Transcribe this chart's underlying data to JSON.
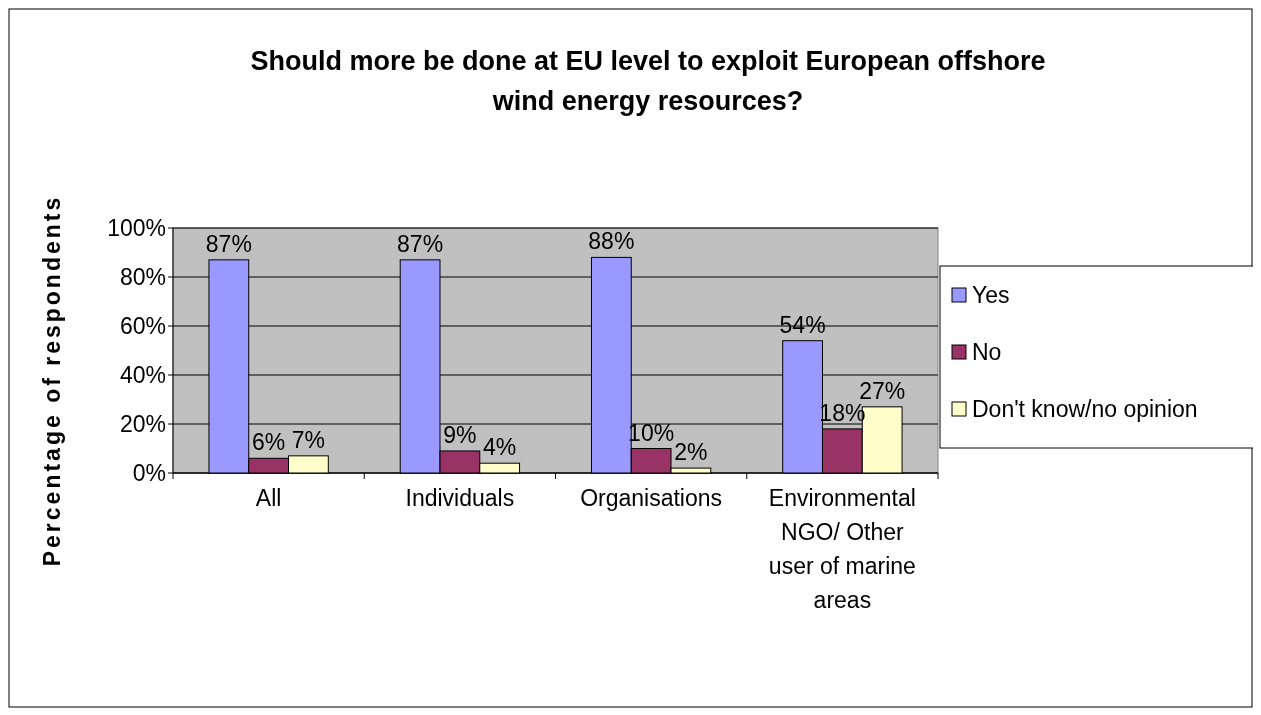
{
  "chart_data": {
    "type": "bar",
    "title": "Should more be done at EU level to exploit European offshore wind energy resources?",
    "ylabel": "Percentage of respondents",
    "categories": [
      "All",
      "Individuals",
      "Organisations",
      "Environmental NGO/ Other user of marine areas"
    ],
    "series": [
      {
        "name": "Yes",
        "color": "#9999ff",
        "values": [
          87,
          87,
          88,
          54
        ],
        "value_labels": [
          "87%",
          "87%",
          "88%",
          "54%"
        ]
      },
      {
        "name": "No",
        "color": "#993366",
        "values": [
          6,
          9,
          10,
          18
        ],
        "value_labels": [
          "6%",
          "9%",
          "10%",
          "18%"
        ]
      },
      {
        "name": "Don't know/no opinion",
        "color": "#ffffcc",
        "values": [
          7,
          4,
          2,
          27
        ],
        "value_labels": [
          "7%",
          "4%",
          "2%",
          "27%"
        ]
      }
    ],
    "ylim": [
      0,
      100
    ],
    "yticks": [
      {
        "value": 0,
        "label": "0%"
      },
      {
        "value": 20,
        "label": "20%"
      },
      {
        "value": 40,
        "label": "40%"
      },
      {
        "value": 60,
        "label": "60%"
      },
      {
        "value": 80,
        "label": "80%"
      },
      {
        "value": 100,
        "label": "100%"
      }
    ],
    "grid": "y",
    "legend": "right"
  }
}
